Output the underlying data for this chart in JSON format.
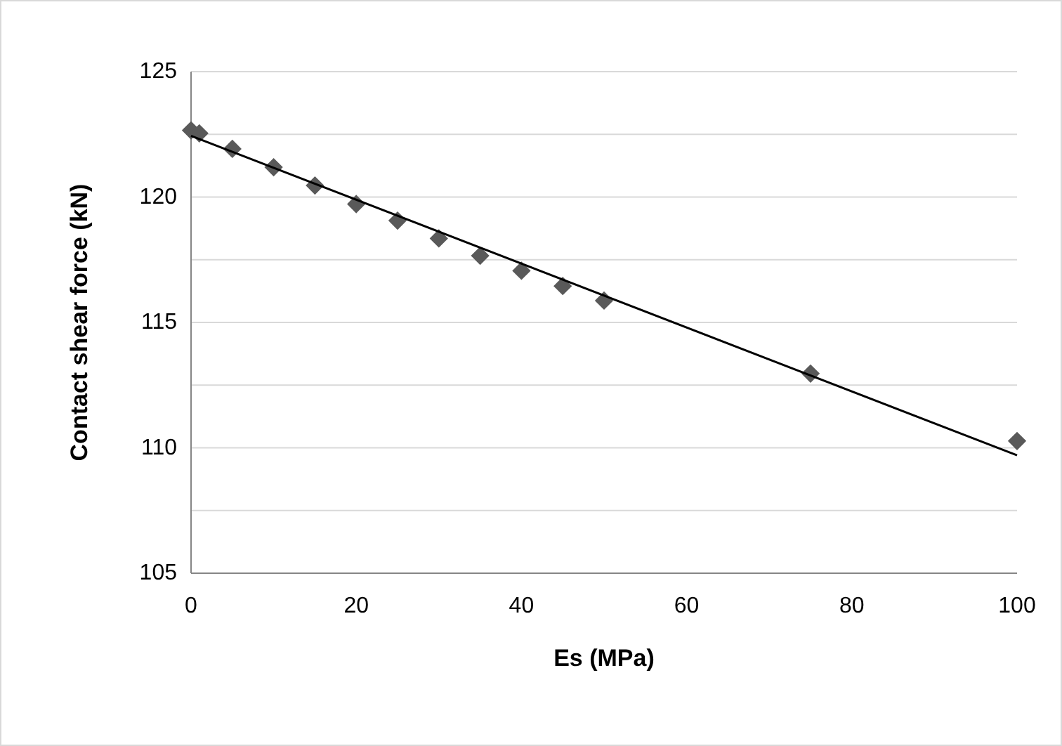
{
  "chart_data": {
    "type": "scatter",
    "xlabel": "Es (MPa)",
    "ylabel": "Contact shear force (kN)",
    "xlim": [
      0,
      100
    ],
    "xticks": [
      0,
      20,
      40,
      60,
      80,
      100
    ],
    "ylim": [
      105,
      125
    ],
    "yticks": [
      105,
      {
        "value": 107.5,
        "label": null
      },
      110,
      {
        "value": 112.5,
        "label": null
      },
      115,
      {
        "value": 117.5,
        "label": null
      },
      120,
      {
        "value": 122.5,
        "label": null
      },
      125
    ],
    "grid": "y",
    "series": [
      {
        "color": "#595959",
        "marker": "diamond",
        "x": [
          0,
          1,
          5,
          10,
          15,
          20,
          25,
          30,
          35,
          40,
          45,
          50,
          75,
          100
        ],
        "values": [
          122.66,
          122.54,
          121.92,
          121.19,
          120.46,
          119.72,
          119.06,
          118.35,
          117.66,
          117.06,
          116.45,
          115.87,
          112.96,
          110.27
        ]
      },
      {
        "type": "line",
        "color": "#000000",
        "marker": "none",
        "line_style": "solid",
        "x": [
          0,
          100
        ],
        "values": [
          122.44,
          109.7
        ]
      }
    ]
  }
}
